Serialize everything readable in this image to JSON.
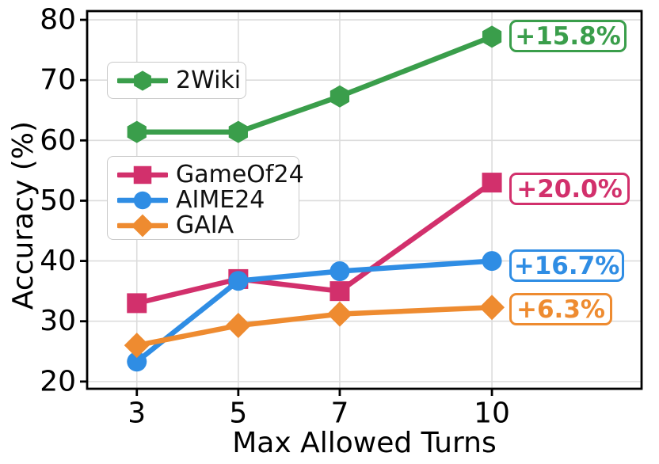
{
  "chart_data": {
    "type": "line",
    "title": "",
    "xlabel": "Max Allowed Turns",
    "ylabel": "Accuracy (%)",
    "x": [
      3,
      5,
      7,
      10
    ],
    "x_tick_labels": [
      "3",
      "5",
      "7",
      "10"
    ],
    "y_ticks": [
      20,
      30,
      40,
      50,
      60,
      70,
      80
    ],
    "xlim": [
      2.02,
      12.95
    ],
    "ylim": [
      18.8,
      81.45
    ],
    "grid": true,
    "grid_color": "#dcdcdc",
    "background": "#ffffff",
    "legend_positions": [
      "upper-left-inside",
      "middle-left-inside"
    ],
    "series": [
      {
        "name": "2Wiki",
        "color": "#3a9e4b",
        "marker": "hexagon",
        "values": [
          61.4,
          61.4,
          67.3,
          77.2
        ],
        "annotation": "+15.8%"
      },
      {
        "name": "GameOf24",
        "color": "#d2306c",
        "marker": "square",
        "values": [
          33.0,
          37.0,
          35.0,
          53.0
        ],
        "annotation": "+20.0%"
      },
      {
        "name": "AIME24",
        "color": "#2f8de4",
        "marker": "circle",
        "values": [
          23.3,
          36.7,
          38.3,
          40.0
        ],
        "annotation": "+16.7%"
      },
      {
        "name": "GAIA",
        "color": "#ee8b30",
        "marker": "diamond",
        "values": [
          26.0,
          29.3,
          31.2,
          32.3
        ],
        "annotation": "+6.3%"
      }
    ]
  }
}
